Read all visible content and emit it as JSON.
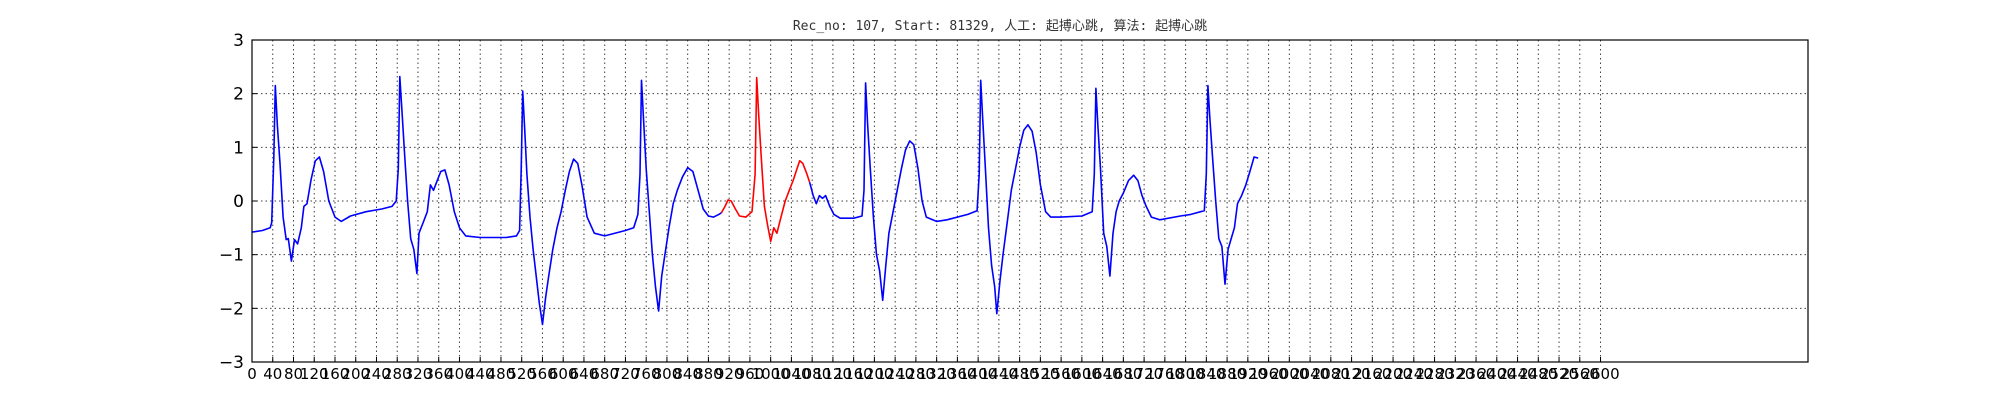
{
  "chart_data": {
    "type": "line",
    "title": "Rec_no: 107, Start: 81329, 人工: 起搏心跳, 算法: 起搏心跳",
    "xlabel": "",
    "ylabel": "",
    "xlim": [
      0,
      3000
    ],
    "ylim": [
      -3,
      3
    ],
    "grid": true,
    "x_ticks": [
      0,
      40,
      80,
      120,
      160,
      200,
      240,
      280,
      320,
      360,
      400,
      440,
      480,
      520,
      560,
      600,
      640,
      680,
      720,
      760,
      800,
      840,
      880,
      920,
      960,
      1000,
      1040,
      1080,
      1120,
      1160,
      1200,
      1240,
      1280,
      1320,
      1360,
      1400,
      1440,
      1480,
      1520,
      1560,
      1600,
      1640,
      1680,
      1720,
      1760,
      1800,
      1840,
      1880,
      1920,
      1960,
      2000,
      2040,
      2080,
      2120,
      2160,
      2200,
      2240,
      2280,
      2320,
      2360,
      2400,
      2440,
      2480,
      2520,
      2560,
      2600
    ],
    "x_tick_labels": [
      "0",
      "40",
      "80",
      "120",
      "160",
      "200",
      "240",
      "280",
      "320",
      "360",
      "400",
      "440",
      "480",
      "520",
      "560",
      "600",
      "640",
      "680",
      "720",
      "760",
      "800",
      "840",
      "880",
      "920",
      "960",
      "1000",
      "1040",
      "1080",
      "1120",
      "1160",
      "1200",
      "1240",
      "1280",
      "1320",
      "1360",
      "1400",
      "1440",
      "1480",
      "1520",
      "1560",
      "1600",
      "1640",
      "1680",
      "1720",
      "1760",
      "1800",
      "1840",
      "1880",
      "1920",
      "1960",
      "2000",
      "2040",
      "2080",
      "2120",
      "2160",
      "2200",
      "2240",
      "2280",
      "2320",
      "2360",
      "2400",
      "2440",
      "2480",
      "2520",
      "2560",
      "2600"
    ],
    "y_ticks": [
      3,
      2,
      1,
      0,
      -1,
      -2,
      -3
    ],
    "y_tick_labels": [
      "3",
      "2",
      "1",
      "0",
      "−1",
      "−2",
      "−3"
    ],
    "colors": {
      "normal": "#0000ff",
      "highlight": "#ff0000",
      "axes": "#000000"
    },
    "series": [
      {
        "color": "blue",
        "points": [
          [
            0,
            -0.58
          ],
          [
            20,
            -0.55
          ],
          [
            35,
            -0.5
          ],
          [
            38,
            -0.4
          ],
          [
            42,
            0.8
          ],
          [
            45,
            2.15
          ],
          [
            49,
            1.4
          ],
          [
            54,
            0.7
          ],
          [
            60,
            -0.3
          ],
          [
            66,
            -0.72
          ],
          [
            70,
            -0.7
          ],
          [
            76,
            -1.12
          ],
          [
            82,
            -0.72
          ],
          [
            88,
            -0.8
          ],
          [
            95,
            -0.5
          ],
          [
            100,
            -0.1
          ],
          [
            106,
            -0.05
          ],
          [
            114,
            0.4
          ],
          [
            122,
            0.75
          ],
          [
            130,
            0.82
          ],
          [
            138,
            0.55
          ],
          [
            148,
            0.0
          ],
          [
            160,
            -0.3
          ],
          [
            172,
            -0.38
          ],
          [
            190,
            -0.28
          ],
          [
            220,
            -0.2
          ],
          [
            250,
            -0.15
          ],
          [
            270,
            -0.1
          ],
          [
            278,
            0.0
          ],
          [
            282,
            0.6
          ],
          [
            285,
            2.32
          ],
          [
            289,
            1.7
          ],
          [
            294,
            0.9
          ],
          [
            300,
            0.0
          ],
          [
            306,
            -0.7
          ],
          [
            312,
            -0.9
          ],
          [
            318,
            -1.35
          ],
          [
            322,
            -0.6
          ],
          [
            330,
            -0.4
          ],
          [
            338,
            -0.2
          ],
          [
            344,
            0.3
          ],
          [
            350,
            0.2
          ],
          [
            356,
            0.35
          ],
          [
            364,
            0.55
          ],
          [
            372,
            0.58
          ],
          [
            380,
            0.3
          ],
          [
            390,
            -0.2
          ],
          [
            400,
            -0.5
          ],
          [
            412,
            -0.65
          ],
          [
            440,
            -0.68
          ],
          [
            490,
            -0.68
          ],
          [
            510,
            -0.65
          ],
          [
            516,
            -0.55
          ],
          [
            519,
            0.6
          ],
          [
            522,
            2.05
          ],
          [
            526,
            1.3
          ],
          [
            530,
            0.5
          ],
          [
            536,
            -0.3
          ],
          [
            542,
            -0.9
          ],
          [
            548,
            -1.4
          ],
          [
            554,
            -1.9
          ],
          [
            560,
            -2.3
          ],
          [
            566,
            -1.8
          ],
          [
            572,
            -1.4
          ],
          [
            580,
            -0.9
          ],
          [
            588,
            -0.5
          ],
          [
            596,
            -0.2
          ],
          [
            604,
            0.2
          ],
          [
            612,
            0.55
          ],
          [
            620,
            0.78
          ],
          [
            628,
            0.7
          ],
          [
            636,
            0.3
          ],
          [
            646,
            -0.3
          ],
          [
            660,
            -0.6
          ],
          [
            680,
            -0.65
          ],
          [
            720,
            -0.55
          ],
          [
            736,
            -0.5
          ],
          [
            744,
            -0.25
          ],
          [
            748,
            0.5
          ],
          [
            751,
            2.25
          ],
          [
            755,
            1.5
          ],
          [
            760,
            0.6
          ],
          [
            766,
            -0.2
          ],
          [
            772,
            -1.0
          ],
          [
            778,
            -1.6
          ],
          [
            784,
            -2.05
          ],
          [
            790,
            -1.4
          ],
          [
            796,
            -1.0
          ],
          [
            804,
            -0.5
          ],
          [
            812,
            -0.05
          ],
          [
            820,
            0.2
          ],
          [
            830,
            0.45
          ],
          [
            840,
            0.62
          ],
          [
            850,
            0.55
          ],
          [
            860,
            0.2
          ],
          [
            870,
            -0.15
          ],
          [
            880,
            -0.28
          ],
          [
            890,
            -0.3
          ],
          [
            900,
            -0.25
          ],
          [
            905,
            -0.22
          ]
        ]
      },
      {
        "color": "red",
        "points": [
          [
            905,
            -0.22
          ],
          [
            912,
            -0.1
          ],
          [
            918,
            0.02
          ],
          [
            924,
            0.0
          ],
          [
            932,
            -0.15
          ],
          [
            940,
            -0.28
          ],
          [
            952,
            -0.3
          ],
          [
            964,
            -0.2
          ],
          [
            970,
            0.5
          ],
          [
            973,
            2.3
          ],
          [
            977,
            1.6
          ],
          [
            982,
            0.8
          ],
          [
            988,
            -0.1
          ],
          [
            994,
            -0.45
          ],
          [
            1000,
            -0.75
          ],
          [
            1006,
            -0.5
          ],
          [
            1012,
            -0.6
          ],
          [
            1020,
            -0.3
          ],
          [
            1028,
            0.0
          ],
          [
            1036,
            0.2
          ],
          [
            1044,
            0.4
          ],
          [
            1050,
            0.58
          ],
          [
            1056,
            0.75
          ],
          [
            1062,
            0.7
          ],
          [
            1070,
            0.5
          ],
          [
            1075,
            0.35
          ]
        ]
      },
      {
        "color": "blue",
        "points": [
          [
            1075,
            0.35
          ],
          [
            1082,
            0.1
          ],
          [
            1088,
            -0.05
          ],
          [
            1094,
            0.1
          ],
          [
            1100,
            0.05
          ],
          [
            1106,
            0.1
          ],
          [
            1114,
            -0.1
          ],
          [
            1122,
            -0.25
          ],
          [
            1134,
            -0.32
          ],
          [
            1160,
            -0.32
          ],
          [
            1176,
            -0.28
          ],
          [
            1180,
            0.2
          ],
          [
            1183,
            2.2
          ],
          [
            1187,
            1.4
          ],
          [
            1192,
            0.6
          ],
          [
            1198,
            -0.3
          ],
          [
            1204,
            -1.0
          ],
          [
            1210,
            -1.3
          ],
          [
            1216,
            -1.85
          ],
          [
            1222,
            -1.2
          ],
          [
            1228,
            -0.6
          ],
          [
            1236,
            -0.2
          ],
          [
            1244,
            0.2
          ],
          [
            1252,
            0.6
          ],
          [
            1260,
            0.95
          ],
          [
            1268,
            1.12
          ],
          [
            1276,
            1.05
          ],
          [
            1284,
            0.6
          ],
          [
            1292,
            0.0
          ],
          [
            1300,
            -0.3
          ],
          [
            1320,
            -0.38
          ],
          [
            1340,
            -0.35
          ],
          [
            1380,
            -0.25
          ],
          [
            1398,
            -0.18
          ],
          [
            1402,
            0.5
          ],
          [
            1405,
            2.25
          ],
          [
            1409,
            1.5
          ],
          [
            1414,
            0.6
          ],
          [
            1420,
            -0.5
          ],
          [
            1426,
            -1.2
          ],
          [
            1432,
            -1.6
          ],
          [
            1436,
            -2.1
          ],
          [
            1442,
            -1.5
          ],
          [
            1448,
            -1.0
          ],
          [
            1456,
            -0.4
          ],
          [
            1464,
            0.2
          ],
          [
            1472,
            0.6
          ],
          [
            1480,
            1.0
          ],
          [
            1488,
            1.32
          ],
          [
            1496,
            1.42
          ],
          [
            1504,
            1.3
          ],
          [
            1512,
            0.9
          ],
          [
            1520,
            0.3
          ],
          [
            1530,
            -0.2
          ],
          [
            1540,
            -0.3
          ],
          [
            1560,
            -0.3
          ],
          [
            1600,
            -0.28
          ],
          [
            1620,
            -0.2
          ],
          [
            1624,
            0.5
          ],
          [
            1627,
            2.1
          ],
          [
            1631,
            1.4
          ],
          [
            1636,
            0.6
          ],
          [
            1642,
            -0.6
          ],
          [
            1648,
            -0.85
          ],
          [
            1654,
            -1.4
          ],
          [
            1660,
            -0.6
          ],
          [
            1666,
            -0.2
          ],
          [
            1672,
            0.0
          ],
          [
            1680,
            0.15
          ],
          [
            1690,
            0.38
          ],
          [
            1700,
            0.48
          ],
          [
            1708,
            0.38
          ],
          [
            1716,
            0.1
          ],
          [
            1724,
            -0.1
          ],
          [
            1734,
            -0.3
          ],
          [
            1750,
            -0.35
          ],
          [
            1790,
            -0.28
          ],
          [
            1810,
            -0.25
          ],
          [
            1836,
            -0.18
          ],
          [
            1840,
            0.5
          ],
          [
            1843,
            2.15
          ],
          [
            1847,
            1.5
          ],
          [
            1852,
            0.8
          ],
          [
            1858,
            0.0
          ],
          [
            1864,
            -0.7
          ],
          [
            1870,
            -0.85
          ],
          [
            1876,
            -1.55
          ],
          [
            1882,
            -0.9
          ],
          [
            1888,
            -0.7
          ],
          [
            1894,
            -0.5
          ],
          [
            1900,
            -0.05
          ],
          [
            1908,
            0.1
          ],
          [
            1916,
            0.3
          ],
          [
            1924,
            0.55
          ],
          [
            1932,
            0.82
          ],
          [
            1940,
            0.8
          ]
        ]
      }
    ]
  }
}
